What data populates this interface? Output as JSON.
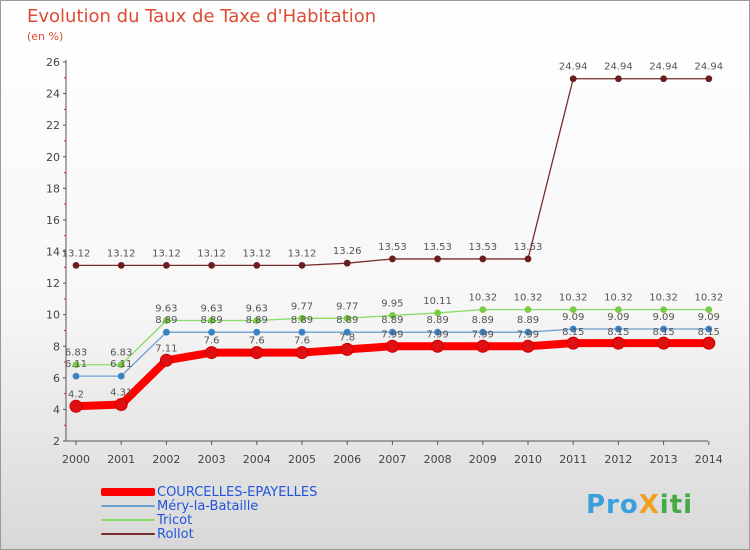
{
  "title": "Evolution du Taux de Taxe d'Habitation",
  "subtitle": "(en %)",
  "logo": "ProXiti",
  "chart_data": {
    "type": "line",
    "title": "Evolution du Taux de Taxe d'Habitation",
    "ylabel": "(en %)",
    "xlabel": "",
    "ylim": [
      2,
      26
    ],
    "yticks": [
      2,
      4,
      6,
      8,
      10,
      12,
      14,
      16,
      18,
      20,
      22,
      24,
      26
    ],
    "categories": [
      "2000",
      "2001",
      "2002",
      "2003",
      "2004",
      "2005",
      "2006",
      "2007",
      "2008",
      "2009",
      "2010",
      "2011",
      "2012",
      "2013",
      "2014"
    ],
    "series": [
      {
        "name": "COURCELLES-EPAYELLES",
        "color": "#ff0000",
        "marker": "#e01010",
        "width": "thick",
        "values": [
          4.2,
          4.31,
          7.11,
          7.6,
          7.6,
          7.6,
          7.8,
          8.0,
          8.0,
          8.0,
          8.0,
          8.2,
          8.2,
          8.2,
          8.2
        ],
        "labels": [
          "4.2",
          "4.31",
          "7.11",
          "7.6",
          "7.6",
          "7.6",
          "7.8",
          "",
          "",
          "",
          "",
          "",
          "",
          "",
          ""
        ]
      },
      {
        "name": "Méry-la-Bataille",
        "color": "#6aa0d0",
        "marker": "#3b82c4",
        "width": "thin",
        "values": [
          6.11,
          6.11,
          8.89,
          8.89,
          8.89,
          8.89,
          8.89,
          8.89,
          8.89,
          8.89,
          8.89,
          9.09,
          9.09,
          9.09,
          9.09
        ],
        "labels": [
          "6.11",
          "6.11",
          "8.89",
          "8.89",
          "8.89",
          "8.89",
          "8.89",
          "8.89",
          "8.89",
          "8.89",
          "8.89",
          "9.09",
          "9.09",
          "9.09",
          "9.09"
        ]
      },
      {
        "name": "Tricot",
        "color": "#88dd66",
        "marker": "#77cc44",
        "width": "thin",
        "values": [
          6.83,
          6.83,
          9.63,
          9.63,
          9.63,
          9.77,
          9.77,
          9.95,
          10.11,
          10.32,
          10.32,
          10.32,
          10.32,
          10.32,
          10.32
        ],
        "labels": [
          "6.83",
          "6.83",
          "9.63",
          "9.63",
          "9.63",
          "9.77",
          "9.77",
          "9.95",
          "10.11",
          "10.32",
          "10.32",
          "10.32",
          "10.32",
          "10.32",
          "10.32"
        ]
      },
      {
        "name": "Rollot",
        "color": "#7a2c2c",
        "marker": "#6a1e1e",
        "width": "thin",
        "values": [
          13.12,
          13.12,
          13.12,
          13.12,
          13.12,
          13.12,
          13.26,
          13.53,
          13.53,
          13.53,
          13.53,
          24.94,
          24.94,
          24.94,
          24.94
        ],
        "labels": [
          "13.12",
          "13.12",
          "13.12",
          "13.12",
          "13.12",
          "13.12",
          "13.26",
          "13.53",
          "13.53",
          "13.53",
          "13.53",
          "24.94",
          "24.94",
          "24.94",
          "24.94"
        ]
      }
    ],
    "extra_labels": [
      {
        "index": 7,
        "value": 7.99,
        "text": "7.99"
      },
      {
        "index": 8,
        "value": 7.99,
        "text": "7.99"
      },
      {
        "index": 9,
        "value": 7.99,
        "text": "7.99"
      },
      {
        "index": 10,
        "value": 7.99,
        "text": "7.99"
      },
      {
        "index": 11,
        "value": 8.15,
        "text": "8.15"
      },
      {
        "index": 12,
        "value": 8.15,
        "text": "8.15"
      },
      {
        "index": 13,
        "value": 8.15,
        "text": "8.15"
      },
      {
        "index": 14,
        "value": 8.15,
        "text": "8.15"
      }
    ]
  }
}
